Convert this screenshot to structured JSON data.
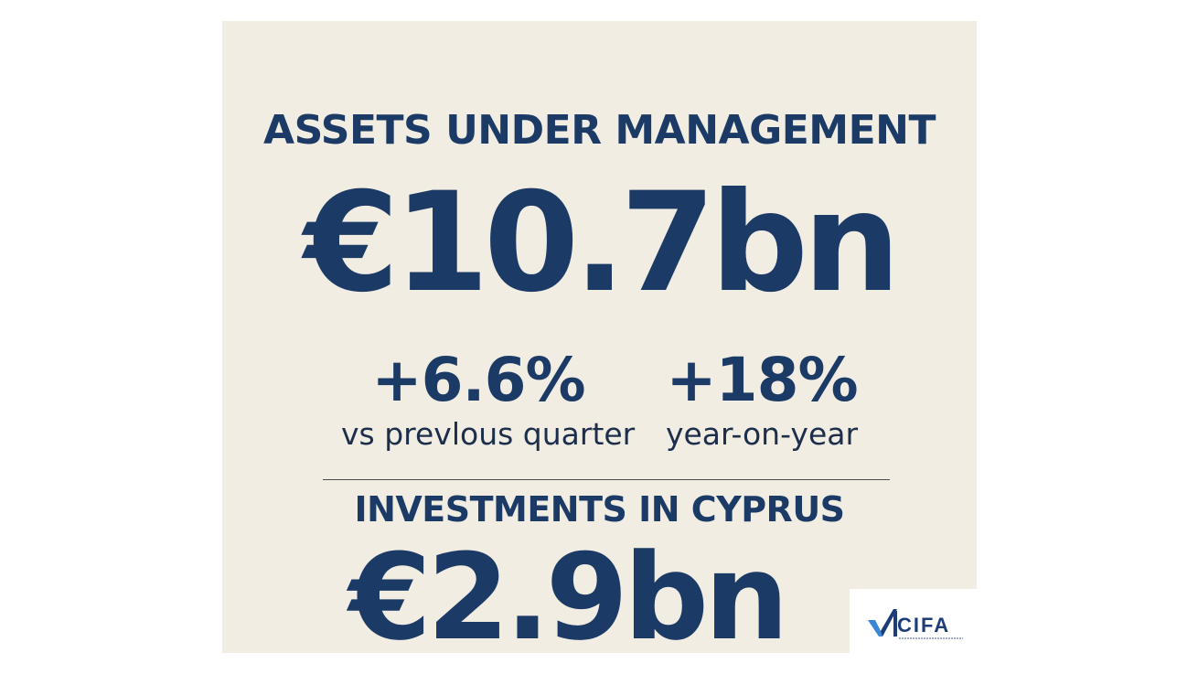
{
  "aum": {
    "title": "ASSETS UNDER MANAGEMENT",
    "value": "€10.7bn"
  },
  "stats": [
    {
      "value": "+6.6%",
      "label": "vs prevlous quarter"
    },
    {
      "value": "+18%",
      "label": "year-on-year"
    }
  ],
  "cyprus": {
    "title": "INVESTMENTS IN CYPRUS",
    "value": "€2.9bn"
  },
  "logo": {
    "text": "CIFA"
  },
  "colors": {
    "navy": "#1b3a66",
    "background": "#f1ede3",
    "logo_blue": "#1e3c78",
    "logo_accent": "#3a86d8"
  }
}
